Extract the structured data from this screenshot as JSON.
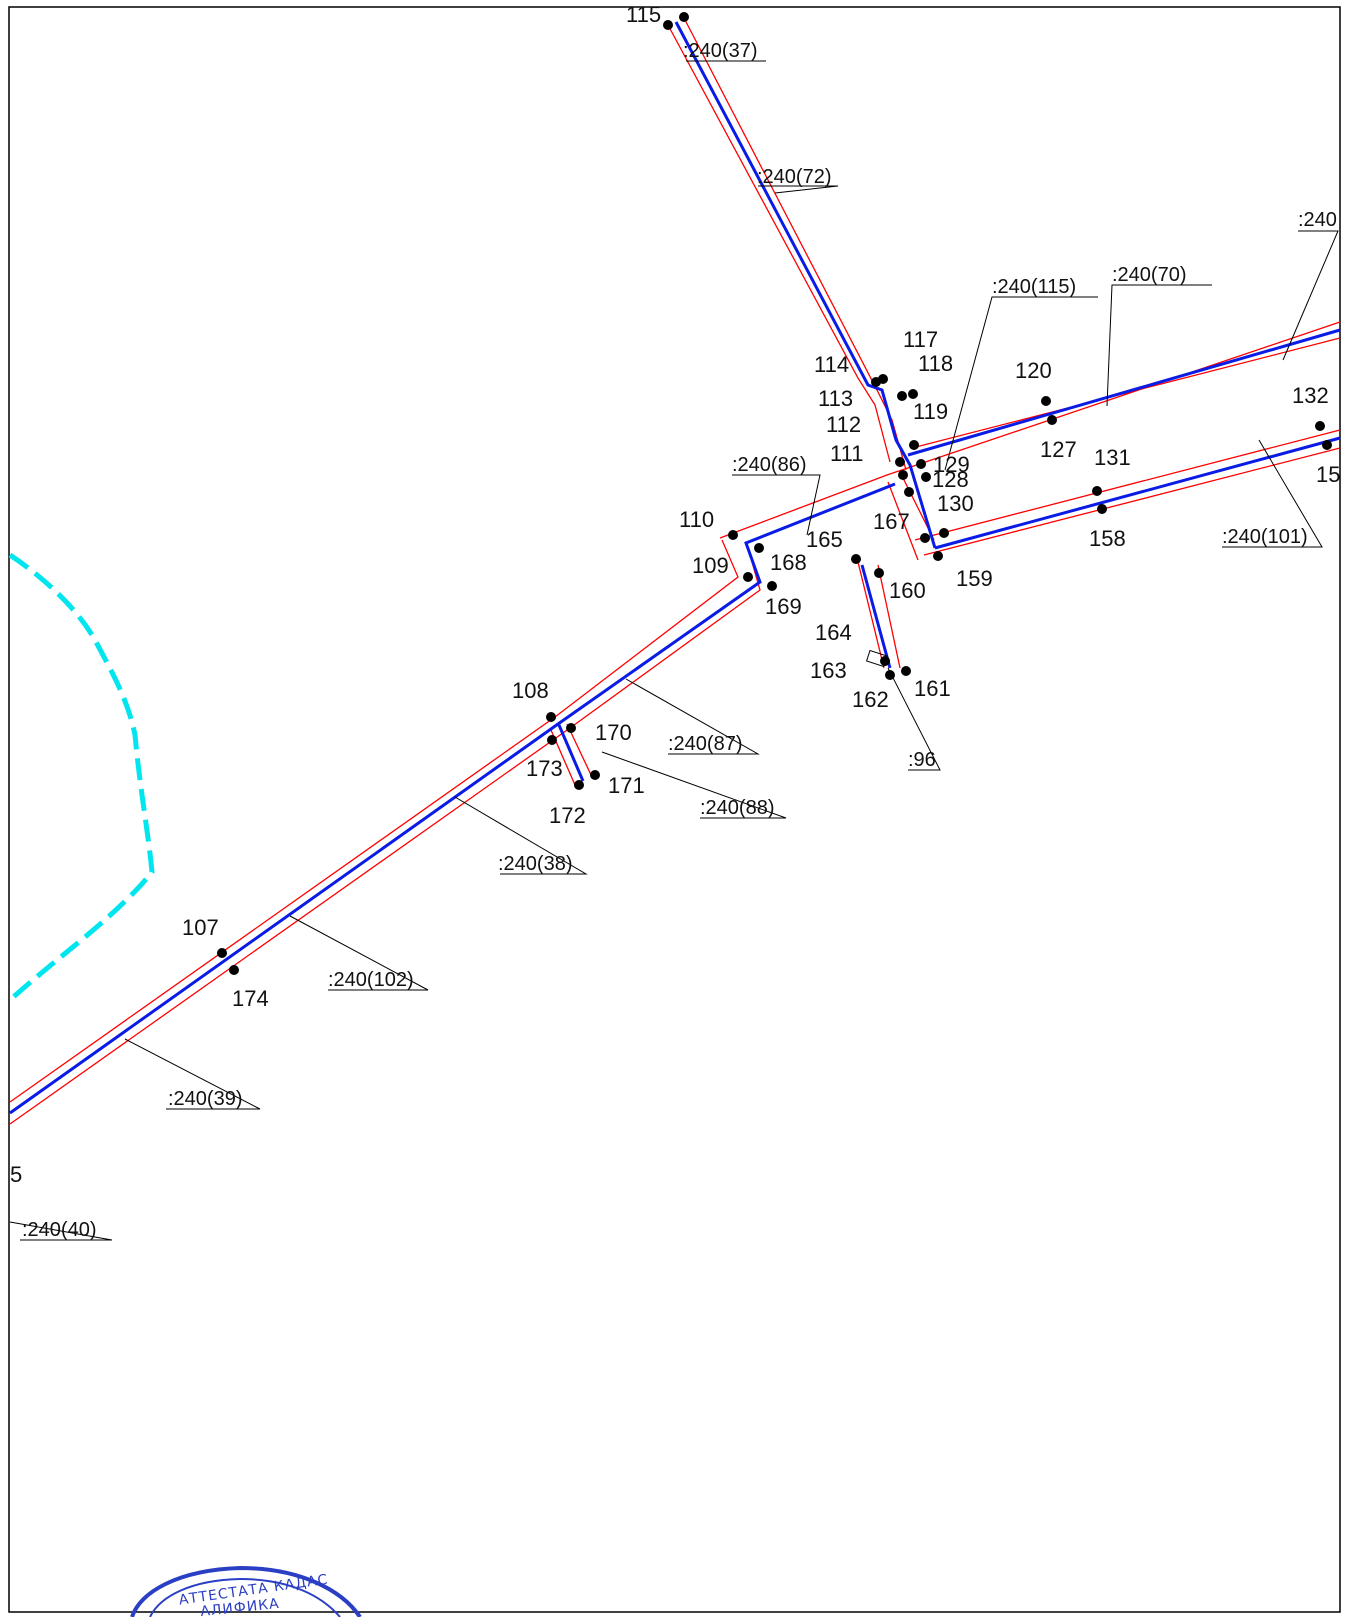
{
  "colors": {
    "background": "#ffffff",
    "frame": "#000000",
    "centerline": "#0a1be6",
    "boundary": "#ff0000",
    "zone": "#00e5ee",
    "points": "#000000",
    "stamp": "#2b3fc4"
  },
  "points": [
    {
      "label": "115"
    },
    {
      "label": "114"
    },
    {
      "label": "113"
    },
    {
      "label": "112"
    },
    {
      "label": "111"
    },
    {
      "label": "117"
    },
    {
      "label": "118"
    },
    {
      "label": "119"
    },
    {
      "label": "120"
    },
    {
      "label": "127"
    },
    {
      "label": "129"
    },
    {
      "label": "128"
    },
    {
      "label": "130"
    },
    {
      "label": "131"
    },
    {
      "label": "132"
    },
    {
      "label": "15"
    },
    {
      "label": "158"
    },
    {
      "label": "159"
    },
    {
      "label": "160"
    },
    {
      "label": "167"
    },
    {
      "label": "165"
    },
    {
      "label": "168"
    },
    {
      "label": "169"
    },
    {
      "label": "110"
    },
    {
      "label": "109"
    },
    {
      "label": "164"
    },
    {
      "label": "163"
    },
    {
      "label": "162"
    },
    {
      "label": "161"
    },
    {
      "label": "108"
    },
    {
      "label": "170"
    },
    {
      "label": "173"
    },
    {
      "label": "171"
    },
    {
      "label": "172"
    },
    {
      "label": "107"
    },
    {
      "label": "174"
    }
  ],
  "parcel_labels": [
    {
      "text": ":240(37)"
    },
    {
      "text": ":240(72)"
    },
    {
      "text": ":240"
    },
    {
      "text": ":240(70)"
    },
    {
      "text": ":240(115)"
    },
    {
      "text": ":240(86)"
    },
    {
      "text": ":240(101)"
    },
    {
      "text": ":240(87)"
    },
    {
      "text": ":240(88)"
    },
    {
      "text": ":96"
    },
    {
      "text": ":240(38)"
    },
    {
      "text": ":240(102)"
    },
    {
      "text": ":240(39)"
    },
    {
      "text": ":240(40)"
    }
  ],
  "misc": {
    "edge_label": "5"
  },
  "stamp": {
    "line1": "АТТЕСТАТА КАДАС",
    "line2": "АЛИФИКА"
  }
}
